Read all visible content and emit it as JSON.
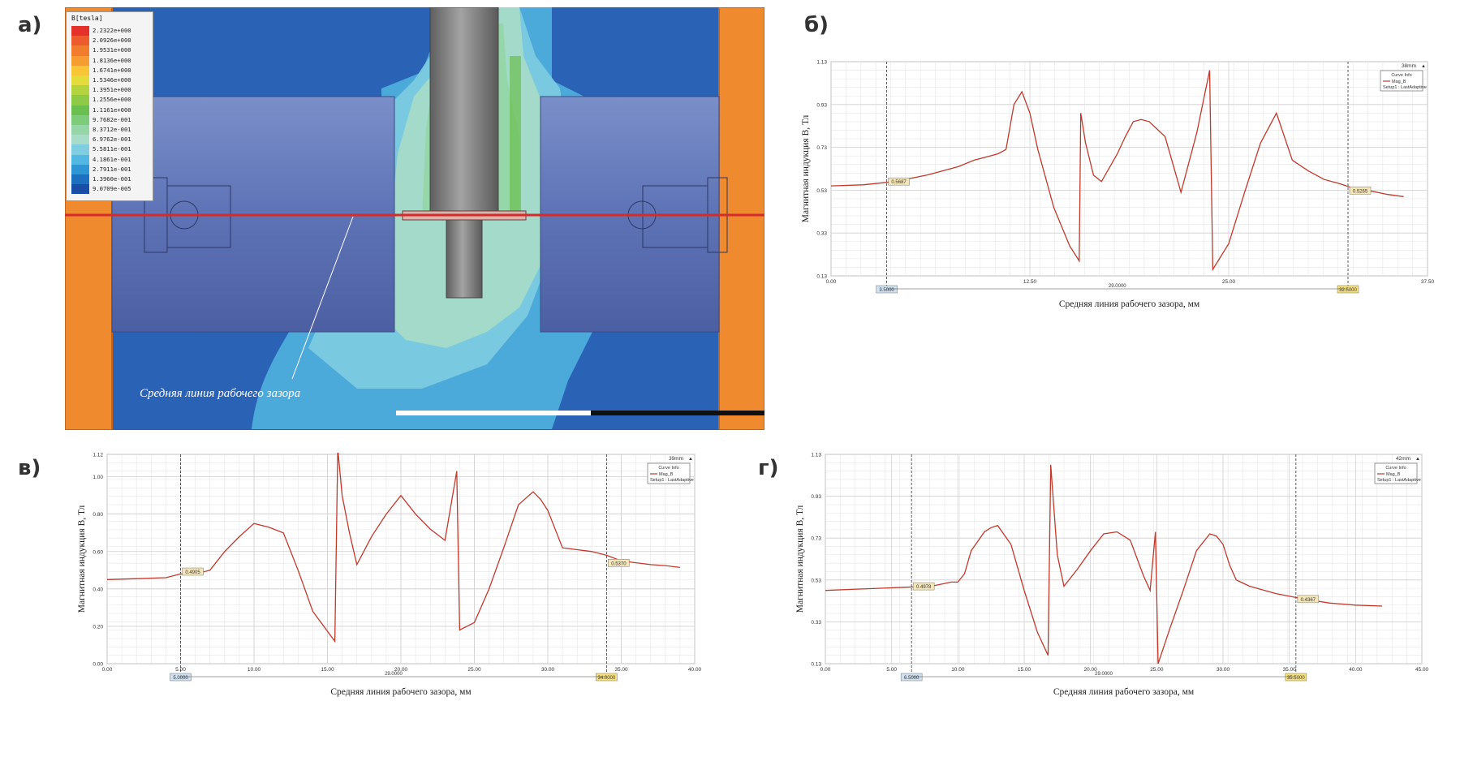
{
  "labels": {
    "a": "а)",
    "b": "б)",
    "v": "в)",
    "g": "г)"
  },
  "figure_a": {
    "legend_title": "B[tesla]",
    "legend_values": [
      "2.2322e+000",
      "2.0926e+000",
      "1.9531e+000",
      "1.8136e+000",
      "1.6741e+000",
      "1.5346e+000",
      "1.3951e+000",
      "1.2556e+000",
      "1.1161e+000",
      "9.7682e-001",
      "8.3712e-001",
      "6.9762e-001",
      "5.5811e-001",
      "4.1861e-001",
      "2.7911e-001",
      "1.3960e-001",
      "9.0709e-005"
    ],
    "legend_colors": [
      "#e4312b",
      "#ec5a2d",
      "#f27c2e",
      "#f59d31",
      "#f7c535",
      "#e4dc3c",
      "#b4d43f",
      "#8fca46",
      "#6bbf4f",
      "#7ccc7a",
      "#95d6a6",
      "#a7dcc8",
      "#7ecde0",
      "#52b7e2",
      "#2f96d6",
      "#1d6fc0",
      "#1a4da6"
    ],
    "caption": "Средняя линия рабочего зазора",
    "colors": {
      "pole_orange": "#f08a2e",
      "field_blue": "#2a62b5",
      "cyl_slate": "#5b72b3",
      "shaft_gray": "#7d7d7d",
      "midline_red": "#d42b2b"
    }
  },
  "chart_data": [
    {
      "id": "b",
      "type": "line",
      "xlabel": "Средняя линия рабочего зазора, мм",
      "ylabel": "Магнитная индукция B, Тл",
      "xlim": [
        0,
        37.5
      ],
      "ylim": [
        0.13,
        1.13
      ],
      "xticks": [
        0,
        12.5,
        25,
        37.5
      ],
      "xtick_labels": [
        "0.00",
        "12.50",
        "25.00",
        "37.50"
      ],
      "yticks": [
        0.13,
        0.33,
        0.53,
        0.73,
        0.93,
        1.13
      ],
      "ytick_labels": [
        "0.13",
        "0.33",
        "0.53",
        "0.73",
        "0.93",
        "1.13"
      ],
      "corner_label": "38mm",
      "legend": {
        "title": "Curve Info",
        "entries": [
          "Mag_B",
          "Setup1 : LastAdaptive"
        ]
      },
      "markers": [
        {
          "x": 3.5,
          "y": 0.5687,
          "label": "0.5687",
          "bottom_label": "3.5000"
        },
        {
          "x": 32.5,
          "y": 0.5265,
          "label": "0.5265",
          "bottom_label": "32.5000"
        }
      ],
      "span_label": "29.0000",
      "series": [
        {
          "color": "#c0392b",
          "x": [
            0,
            2,
            4,
            6,
            8,
            9,
            10,
            10.5,
            11,
            11.5,
            12,
            12.5,
            13,
            14,
            15,
            15.6,
            15.7,
            16,
            16.5,
            17,
            18,
            18.5,
            19,
            19.5,
            20,
            21,
            22,
            23,
            23.8,
            24,
            25,
            26,
            27,
            28,
            29,
            30,
            31,
            32,
            33,
            34,
            35,
            36
          ],
          "y": [
            0.55,
            0.555,
            0.57,
            0.6,
            0.64,
            0.67,
            0.69,
            0.7,
            0.72,
            0.93,
            0.99,
            0.89,
            0.72,
            0.45,
            0.27,
            0.2,
            0.89,
            0.75,
            0.6,
            0.57,
            0.7,
            0.78,
            0.85,
            0.86,
            0.85,
            0.78,
            0.52,
            0.8,
            1.09,
            0.16,
            0.28,
            0.52,
            0.75,
            0.89,
            0.67,
            0.62,
            0.58,
            0.56,
            0.535,
            0.525,
            0.51,
            0.5
          ]
        }
      ]
    },
    {
      "id": "v",
      "type": "line",
      "xlabel": "Средняя линия рабочего зазора, мм",
      "ylabel": "Магнитная индукция B, Тл",
      "xlim": [
        0,
        40
      ],
      "ylim": [
        0,
        1.12
      ],
      "xticks": [
        0,
        5,
        10,
        15,
        20,
        25,
        30,
        35,
        40
      ],
      "xtick_labels": [
        "0.00",
        "5.00",
        "10.00",
        "15.00",
        "20.00",
        "25.00",
        "30.00",
        "35.00",
        "40.00"
      ],
      "yticks": [
        0,
        0.2,
        0.4,
        0.6,
        0.8,
        1.0,
        1.12
      ],
      "ytick_labels": [
        "0.00",
        "0.20",
        "0.40",
        "0.60",
        "0.80",
        "1.00",
        "1.12"
      ],
      "corner_label": "39mm",
      "legend": {
        "title": "Curve Info",
        "entries": [
          "Mag_B",
          "Setup1 : LastAdaptive"
        ]
      },
      "markers": [
        {
          "x": 5.0,
          "y": 0.4905,
          "label": "0.4905",
          "bottom_label": "5.0000"
        },
        {
          "x": 34.0,
          "y": 0.537,
          "label": "0.5370",
          "bottom_label": "34.0000"
        }
      ],
      "span_label": "29.0000",
      "series": [
        {
          "color": "#c0392b",
          "x": [
            0,
            2,
            4,
            5,
            6,
            7,
            8,
            9,
            10,
            11,
            12,
            13,
            14,
            15.5,
            15.7,
            16,
            16.5,
            17,
            18,
            19,
            20,
            20.5,
            21,
            22,
            23,
            23.8,
            24,
            25,
            26,
            27,
            28,
            29,
            29.5,
            30,
            31,
            32,
            33,
            34,
            35,
            36,
            37,
            38,
            39
          ],
          "y": [
            0.45,
            0.455,
            0.46,
            0.48,
            0.48,
            0.5,
            0.6,
            0.68,
            0.75,
            0.73,
            0.7,
            0.5,
            0.28,
            0.12,
            1.15,
            0.9,
            0.7,
            0.53,
            0.68,
            0.8,
            0.9,
            0.85,
            0.8,
            0.72,
            0.66,
            1.03,
            0.18,
            0.22,
            0.4,
            0.62,
            0.85,
            0.92,
            0.88,
            0.82,
            0.62,
            0.61,
            0.6,
            0.58,
            0.55,
            0.54,
            0.53,
            0.525,
            0.515
          ]
        }
      ]
    },
    {
      "id": "g",
      "type": "line",
      "xlabel": "Средняя линия рабочего зазора, мм",
      "ylabel": "Магнитная индукция B, Тл",
      "xlim": [
        0,
        45
      ],
      "ylim": [
        0.13,
        1.13
      ],
      "xticks": [
        0,
        5,
        10,
        15,
        20,
        25,
        30,
        35,
        40,
        45
      ],
      "xtick_labels": [
        "0.00",
        "5.00",
        "10.00",
        "15.00",
        "20.00",
        "25.00",
        "30.00",
        "35.00",
        "40.00",
        "45.00"
      ],
      "yticks": [
        0.13,
        0.33,
        0.53,
        0.73,
        0.93,
        1.13
      ],
      "ytick_labels": [
        "0.13",
        "0.33",
        "0.53",
        "0.73",
        "0.93",
        "1.13"
      ],
      "corner_label": "42mm",
      "legend": {
        "title": "Curve Info",
        "entries": [
          "Mag_B",
          "Setup1 : LastAdaptive"
        ]
      },
      "markers": [
        {
          "x": 6.5,
          "y": 0.4978,
          "label": "0.4978",
          "bottom_label": "6.5000"
        },
        {
          "x": 35.5,
          "y": 0.4367,
          "label": "0.4367",
          "bottom_label": "35.5000"
        }
      ],
      "span_label": "29.0000",
      "series": [
        {
          "color": "#c0392b",
          "x": [
            0,
            2,
            4,
            6,
            8,
            9.5,
            10,
            10.5,
            11,
            12,
            12.5,
            13,
            14,
            15,
            16,
            16.8,
            17,
            17.5,
            18,
            19,
            20,
            21,
            22,
            23,
            24,
            24.5,
            24.9,
            25.1,
            26,
            27,
            28,
            29,
            29.5,
            30,
            30.5,
            31,
            32,
            34,
            36,
            38,
            40,
            42
          ],
          "y": [
            0.48,
            0.485,
            0.49,
            0.495,
            0.5,
            0.52,
            0.52,
            0.56,
            0.67,
            0.76,
            0.78,
            0.79,
            0.7,
            0.48,
            0.28,
            0.17,
            1.08,
            0.65,
            0.5,
            0.58,
            0.67,
            0.75,
            0.76,
            0.72,
            0.55,
            0.48,
            0.76,
            0.13,
            0.3,
            0.48,
            0.67,
            0.75,
            0.74,
            0.7,
            0.6,
            0.53,
            0.5,
            0.465,
            0.44,
            0.42,
            0.41,
            0.405
          ]
        }
      ]
    }
  ]
}
